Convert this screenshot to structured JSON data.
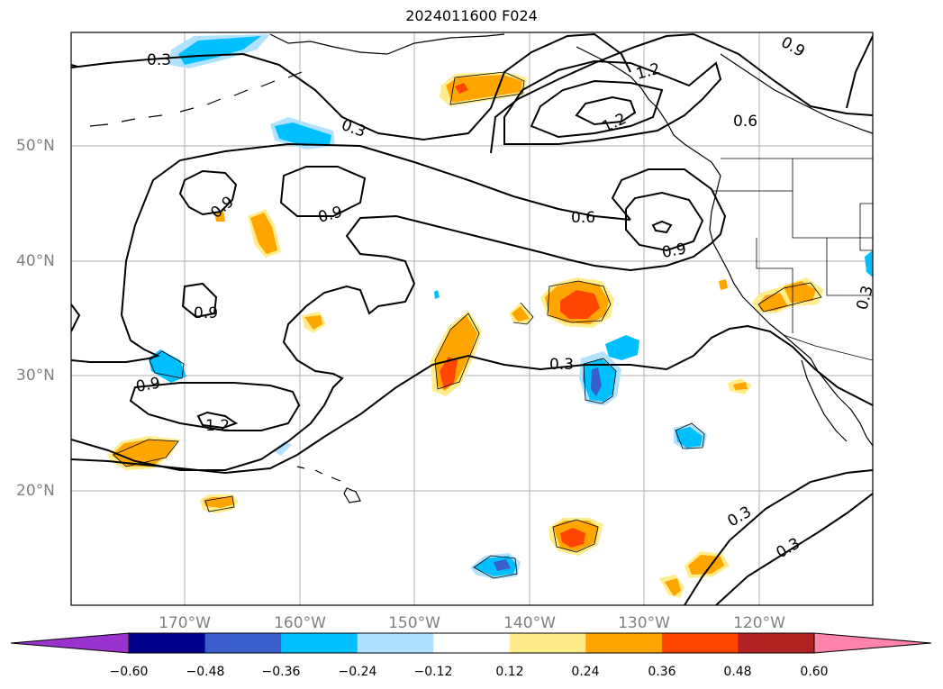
{
  "title": "2024011600 F024",
  "map": {
    "lat_labels": [
      "50°N",
      "40°N",
      "30°N",
      "20°N"
    ],
    "lon_labels": [
      "170°W",
      "160°W",
      "150°W",
      "140°W",
      "130°W",
      "120°W"
    ],
    "gridlines": true,
    "contour_color": "#000000",
    "contour_labels": [
      "0.3",
      "0.3",
      "1.2",
      "1.2",
      "0.6",
      "0.9",
      "0.9",
      "0.9",
      "0.6",
      "0.9",
      "0.9",
      "0.9",
      "1.2",
      "0.3",
      "0.3",
      "0.3",
      "0.3"
    ]
  },
  "colorbar": {
    "ticks": [
      "−0.60",
      "−0.48",
      "−0.36",
      "−0.24",
      "−0.12",
      "0.12",
      "0.24",
      "0.36",
      "0.48",
      "0.60"
    ],
    "colors": [
      "#9a32cd",
      "#00008b",
      "#3a5fcd",
      "#00bfff",
      "#b0e2ff",
      "#ffffff",
      "#ffec8b",
      "#ffa500",
      "#ff4500",
      "#b22222",
      "#ff83ab"
    ]
  }
}
